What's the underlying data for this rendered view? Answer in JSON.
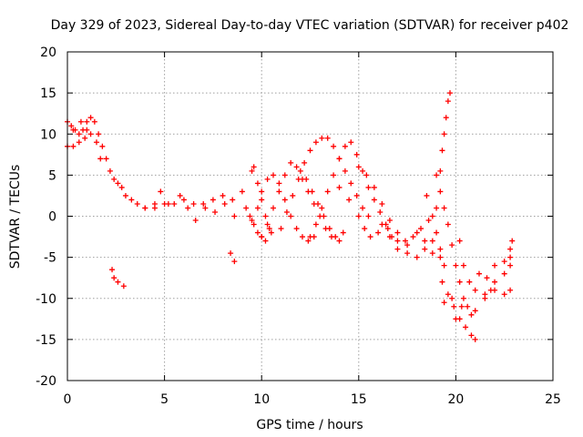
{
  "chart_data": {
    "type": "scatter",
    "title": "Day 329 of 2023, Sidereal Day-to-day VTEC variation (SDTVAR) for receiver p402",
    "xlabel": "GPS time / hours",
    "ylabel": "SDTVAR / TECUs",
    "xlim": [
      0,
      25
    ],
    "ylim": [
      -20,
      20
    ],
    "xticks": [
      0,
      5,
      10,
      15,
      20,
      25
    ],
    "yticks": [
      -20,
      -15,
      -10,
      -5,
      0,
      5,
      10,
      15,
      20
    ],
    "grid": true,
    "marker": "+",
    "color": "#ff0000",
    "series": [
      {
        "name": "SDTVAR",
        "points": [
          [
            0,
            11.5
          ],
          [
            0.2,
            11
          ],
          [
            0.4,
            10.5
          ],
          [
            0.6,
            10
          ],
          [
            0.8,
            10.5
          ],
          [
            1.0,
            11.5
          ],
          [
            1.2,
            12
          ],
          [
            1.4,
            11.5
          ],
          [
            1.6,
            10
          ],
          [
            1.8,
            8.5
          ],
          [
            2.0,
            7
          ],
          [
            2.2,
            5.5
          ],
          [
            2.4,
            4.5
          ],
          [
            2.6,
            4
          ],
          [
            2.8,
            3.5
          ],
          [
            3.0,
            2.5
          ],
          [
            3.3,
            2
          ],
          [
            3.6,
            1.5
          ],
          [
            4.0,
            1
          ],
          [
            4.5,
            1.5
          ],
          [
            5.0,
            1.5
          ],
          [
            5.5,
            1.5
          ],
          [
            6.0,
            2
          ],
          [
            6.5,
            1.5
          ],
          [
            7.0,
            1.5
          ],
          [
            7.5,
            2
          ],
          [
            8.0,
            2.5
          ],
          [
            8.5,
            2
          ],
          [
            0,
            8.5
          ],
          [
            0.3,
            8.5
          ],
          [
            0.6,
            9
          ],
          [
            0.9,
            9.5
          ],
          [
            1.2,
            10
          ],
          [
            1.5,
            9
          ],
          [
            1.7,
            7
          ],
          [
            0.3,
            10.5
          ],
          [
            0.7,
            11.5
          ],
          [
            1.0,
            10.5
          ],
          [
            2.3,
            -6.5
          ],
          [
            2.4,
            -7.5
          ],
          [
            2.6,
            -8
          ],
          [
            2.9,
            -8.5
          ],
          [
            8.4,
            -4.5
          ],
          [
            8.6,
            -5.5
          ],
          [
            4.0,
            1.0
          ],
          [
            4.5,
            1.0
          ],
          [
            4.8,
            3.0
          ],
          [
            5.2,
            1.5
          ],
          [
            5.8,
            2.5
          ],
          [
            6.2,
            1.0
          ],
          [
            6.6,
            -0.5
          ],
          [
            7.1,
            1.0
          ],
          [
            7.6,
            0.5
          ],
          [
            8.1,
            1.5
          ],
          [
            8.6,
            0.0
          ],
          [
            9.0,
            3.0
          ],
          [
            9.2,
            1.0
          ],
          [
            9.4,
            0.0
          ],
          [
            9.6,
            -1.0
          ],
          [
            9.8,
            -2.0
          ],
          [
            10.0,
            -2.5
          ],
          [
            10.2,
            -3.0
          ],
          [
            10.5,
            -2.0
          ],
          [
            9.5,
            5.5
          ],
          [
            9.6,
            6.0
          ],
          [
            9.8,
            4.0
          ],
          [
            10.0,
            2.0
          ],
          [
            10.2,
            0.0
          ],
          [
            10.4,
            -1.5
          ],
          [
            9.5,
            -0.5
          ],
          [
            9.8,
            1.0
          ],
          [
            10.0,
            3.0
          ],
          [
            10.3,
            4.5
          ],
          [
            10.6,
            5.0
          ],
          [
            10.9,
            4.0
          ],
          [
            11.2,
            2.0
          ],
          [
            11.5,
            0.0
          ],
          [
            11.8,
            -1.5
          ],
          [
            12.1,
            -2.5
          ],
          [
            12.4,
            -3.0
          ],
          [
            12.7,
            -2.5
          ],
          [
            10.0,
            -2.5
          ],
          [
            10.3,
            -1.0
          ],
          [
            10.6,
            1.0
          ],
          [
            10.9,
            3.0
          ],
          [
            11.2,
            5.0
          ],
          [
            11.5,
            6.5
          ],
          [
            11.8,
            6.0
          ],
          [
            12.1,
            4.5
          ],
          [
            12.4,
            3.0
          ],
          [
            12.7,
            1.5
          ],
          [
            13.0,
            0.0
          ],
          [
            13.3,
            -1.5
          ],
          [
            13.6,
            -2.5
          ],
          [
            14.0,
            -3.0
          ],
          [
            11.0,
            -1.5
          ],
          [
            11.3,
            0.5
          ],
          [
            11.6,
            2.5
          ],
          [
            11.9,
            4.5
          ],
          [
            12.2,
            6.5
          ],
          [
            12.5,
            8.0
          ],
          [
            12.8,
            9.0
          ],
          [
            13.1,
            9.5
          ],
          [
            13.4,
            9.5
          ],
          [
            13.7,
            8.5
          ],
          [
            14.0,
            7.0
          ],
          [
            14.3,
            5.5
          ],
          [
            14.6,
            4.0
          ],
          [
            14.9,
            2.5
          ],
          [
            15.2,
            1.0
          ],
          [
            15.5,
            0.0
          ],
          [
            12.0,
            5.5
          ],
          [
            12.3,
            4.5
          ],
          [
            12.6,
            3.0
          ],
          [
            12.9,
            1.5
          ],
          [
            13.2,
            0.0
          ],
          [
            13.5,
            -1.5
          ],
          [
            13.8,
            -2.5
          ],
          [
            14.2,
            -2.0
          ],
          [
            12.5,
            -2.5
          ],
          [
            12.8,
            -1.0
          ],
          [
            13.1,
            1.0
          ],
          [
            13.4,
            3.0
          ],
          [
            13.7,
            5.0
          ],
          [
            14.0,
            7.0
          ],
          [
            14.3,
            8.5
          ],
          [
            14.6,
            9.0
          ],
          [
            14.9,
            7.5
          ],
          [
            15.2,
            5.5
          ],
          [
            15.5,
            3.5
          ],
          [
            15.8,
            2.0
          ],
          [
            16.1,
            0.5
          ],
          [
            16.4,
            -1.0
          ],
          [
            16.7,
            -2.5
          ],
          [
            14.0,
            3.5
          ],
          [
            14.5,
            2.0
          ],
          [
            15.0,
            0.0
          ],
          [
            15.3,
            -1.5
          ],
          [
            15.6,
            -2.5
          ],
          [
            16.0,
            -2.0
          ],
          [
            15.0,
            6.0
          ],
          [
            15.4,
            5.0
          ],
          [
            15.8,
            3.5
          ],
          [
            16.2,
            1.5
          ],
          [
            16.6,
            -0.5
          ],
          [
            17.0,
            -2.0
          ],
          [
            17.4,
            -3.0
          ],
          [
            17.8,
            -2.5
          ],
          [
            18.2,
            -1.5
          ],
          [
            18.6,
            -0.5
          ],
          [
            19.0,
            1.0
          ],
          [
            16.2,
            -1.0
          ],
          [
            16.6,
            -2.5
          ],
          [
            17.0,
            -4.0
          ],
          [
            17.5,
            -3.5
          ],
          [
            18.0,
            -2.0
          ],
          [
            18.4,
            -3.0
          ],
          [
            18.8,
            -4.5
          ],
          [
            19.2,
            -5.0
          ],
          [
            16.5,
            -1.5
          ],
          [
            17.0,
            -3.0
          ],
          [
            17.5,
            -4.5
          ],
          [
            18.0,
            -5.0
          ],
          [
            18.4,
            -4.0
          ],
          [
            18.8,
            -3.0
          ],
          [
            18.5,
            2.5
          ],
          [
            18.8,
            0.0
          ],
          [
            19.0,
            -2.0
          ],
          [
            19.2,
            -4.0
          ],
          [
            19.4,
            -6.0
          ],
          [
            19.0,
            5.0
          ],
          [
            19.2,
            3.0
          ],
          [
            19.4,
            1.0
          ],
          [
            19.6,
            -1.0
          ],
          [
            19.8,
            -3.5
          ],
          [
            20.0,
            -6.0
          ],
          [
            20.2,
            -8.0
          ],
          [
            20.4,
            -10.0
          ],
          [
            20.6,
            -11.0
          ],
          [
            20.8,
            -12.0
          ],
          [
            19.2,
            5.5
          ],
          [
            19.3,
            8.0
          ],
          [
            19.4,
            10.0
          ],
          [
            19.5,
            12.0
          ],
          [
            19.6,
            14.0
          ],
          [
            19.7,
            15.0
          ],
          [
            19.3,
            -8.0
          ],
          [
            19.6,
            -9.5
          ],
          [
            19.9,
            -11.0
          ],
          [
            20.2,
            -12.5
          ],
          [
            20.5,
            -13.5
          ],
          [
            20.8,
            -14.5
          ],
          [
            21.0,
            -15.0
          ],
          [
            19.4,
            -10.5
          ],
          [
            19.8,
            -10.0
          ],
          [
            20.0,
            -12.5
          ],
          [
            20.3,
            -11.0
          ],
          [
            20.2,
            -3.0
          ],
          [
            20.4,
            -6.0
          ],
          [
            20.7,
            -8.0
          ],
          [
            21.0,
            -9.0
          ],
          [
            21.5,
            -9.5
          ],
          [
            22.0,
            -9.0
          ],
          [
            22.5,
            -9.5
          ],
          [
            22.8,
            -9.0
          ],
          [
            21.2,
            -7.0
          ],
          [
            21.6,
            -7.5
          ],
          [
            22.0,
            -6.0
          ],
          [
            22.5,
            -5.5
          ],
          [
            22.8,
            -4.0
          ],
          [
            22.0,
            -8.0
          ],
          [
            22.5,
            -7.0
          ],
          [
            22.8,
            -5.0
          ],
          [
            22.9,
            -3.0
          ],
          [
            22.8,
            -6.0
          ],
          [
            21.0,
            -11.5
          ],
          [
            21.5,
            -10.0
          ],
          [
            21.8,
            -9.0
          ]
        ]
      }
    ]
  }
}
